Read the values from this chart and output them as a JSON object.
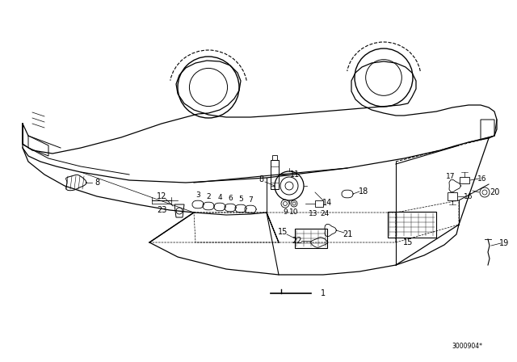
{
  "bg_color": "#ffffff",
  "line_color": "#000000",
  "fig_width": 6.4,
  "fig_height": 4.48,
  "dpi": 100,
  "watermark": "3000904*"
}
